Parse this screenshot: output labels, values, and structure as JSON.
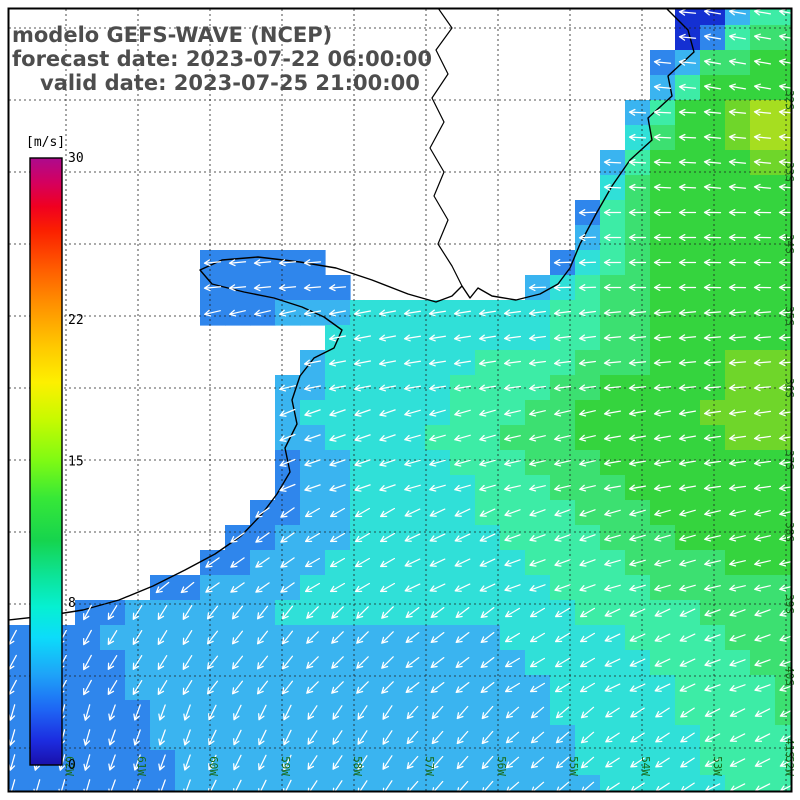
{
  "title": {
    "line1": "modelo GEFS-WAVE (NCEP)",
    "line2": "forecast date: 2023-07-22 06:00:00",
    "line3": "valid date: 2023-07-25 21:00:00"
  },
  "colorbar": {
    "unit_label": "[m/s]",
    "min": 0,
    "max": 30,
    "ticks": [
      {
        "value": 30,
        "label": "30"
      },
      {
        "value": 22,
        "label": "22"
      },
      {
        "value": 15,
        "label": "15"
      },
      {
        "value": 8,
        "label": "8"
      },
      {
        "value": 0,
        "label": "0"
      }
    ],
    "stops": [
      {
        "o": 0.0,
        "c": "#ad0a8e"
      },
      {
        "o": 0.04,
        "c": "#d4005f"
      },
      {
        "o": 0.08,
        "c": "#f00020"
      },
      {
        "o": 0.12,
        "c": "#fb2000"
      },
      {
        "o": 0.18,
        "c": "#ff5a00"
      },
      {
        "o": 0.24,
        "c": "#ff9000"
      },
      {
        "o": 0.31,
        "c": "#ffc800"
      },
      {
        "o": 0.37,
        "c": "#fdf000"
      },
      {
        "o": 0.43,
        "c": "#c8fa00"
      },
      {
        "o": 0.5,
        "c": "#7dfa14"
      },
      {
        "o": 0.56,
        "c": "#37e837"
      },
      {
        "o": 0.63,
        "c": "#16d44e"
      },
      {
        "o": 0.69,
        "c": "#0ce49a"
      },
      {
        "o": 0.74,
        "c": "#06f0d2"
      },
      {
        "o": 0.79,
        "c": "#0cdcfa"
      },
      {
        "o": 0.85,
        "c": "#1ea4f8"
      },
      {
        "o": 0.91,
        "c": "#1e64f4"
      },
      {
        "o": 0.96,
        "c": "#1c2ce0"
      },
      {
        "o": 1.0,
        "c": "#1a10aa"
      }
    ]
  },
  "chart_data": {
    "type": "heatmap",
    "title": "modelo GEFS-WAVE (NCEP)",
    "unit": "m/s",
    "colorbar_range": [
      0,
      30
    ],
    "lat_labels": [
      "32S",
      "33S",
      "34S",
      "35S",
      "36S",
      "37S",
      "38S",
      "39S",
      "40S",
      "41S"
    ],
    "lon_labels": [
      "62W",
      "61W",
      "60W",
      "59W",
      "58W",
      "57W",
      "56W",
      "55W",
      "54W",
      "53W",
      "52W"
    ],
    "cell_size_px": 25,
    "speed_buckets_ms": {
      "A": 2,
      "b": 5,
      "c": 6,
      "d": 7,
      "e": 8,
      "f": 9,
      "g": 10,
      "h": 11,
      "i": 12
    },
    "palette": {
      "A": "#1430d2",
      "b": "#2f86ec",
      "c": "#3ab4f0",
      "d": "#30e0d8",
      "e": "#3deca6",
      "f": "#3ce071",
      "g": "#35d43e",
      "h": "#6fd62a",
      "i": "#a6de20"
    },
    "grid_rows": [
      "...........................AAcee",
      "...........................Abeff",
      "..........................bcffgg",
      "..........................cegggg",
      ".........................cegghii",
      ".........................dfgghii",
      "........................cegggghh",
      "........................dfgggggg",
      ".......................befgggggg",
      ".......................cefgggggg",
      "........bbbbb.........bdefgggggg",
      "........bbbbbb.......cdeffgggggg",
      "........bbbcccddddddddeeffgggggg",
      ".............dddddddddeeffgggggg",
      "............cddddddeeeefffggghhh",
      "...........ccdddddeeeeffggggghhh",
      "...........cddddddeeeffggggghhhh",
      "...........ccddddeeefffgggggghhh",
      "...........bccddddeeefffgggggggg",
      "...........bccdddddeeefffggggggg",
      "..........bbccdddddeeeefffgggggg",
      ".........bbcccddddddeeeefffggggg",
      "........bbcccddddddddeeeeffffggg",
      "......bbccccddddddddddeeeeffffff",
      "...bbccccccddddddddddddeeeeeffff",
      "bbbbccccccccccccccccdddddeeeefff",
      "bbbbbccccccccccccccccdddddeeeeff",
      "bbbbbcccccccccccccccccdddddeeeef",
      "bbbbbbccccccccccccccccdddddeeeef",
      "bbbbbbcccccccccccccccccdddddeeee",
      "bbbbbbbccccccccccccccccdddddeeee",
      "bbbbbbbcccccccccccccccccdddddeee"
    ],
    "arrow_dirs_deg": [
      [
        180,
        180,
        180,
        180,
        180,
        178,
        174,
        170
      ],
      [
        182,
        182,
        182,
        181,
        180,
        179,
        177,
        175
      ],
      [
        186,
        186,
        185,
        184,
        183,
        182,
        180,
        179
      ],
      [
        196,
        195,
        193,
        191,
        189,
        187,
        185,
        184
      ],
      [
        207,
        205,
        202,
        199,
        196,
        193,
        190,
        188
      ],
      [
        222,
        219,
        215,
        210,
        205,
        200,
        196,
        193
      ],
      [
        242,
        238,
        232,
        225,
        218,
        211,
        205,
        200
      ],
      [
        254,
        250,
        244,
        237,
        229,
        221,
        213,
        207
      ]
    ]
  }
}
